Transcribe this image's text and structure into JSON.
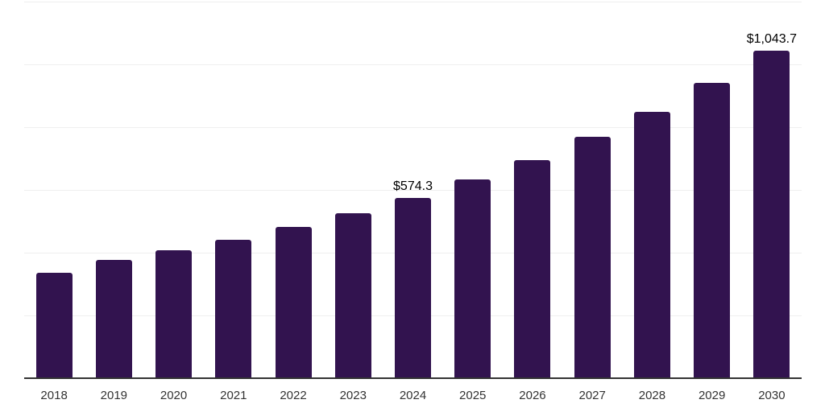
{
  "chart_data": {
    "type": "bar",
    "title": "",
    "xlabel": "",
    "ylabel": "",
    "categories": [
      "2018",
      "2019",
      "2020",
      "2021",
      "2022",
      "2023",
      "2024",
      "2025",
      "2026",
      "2027",
      "2028",
      "2029",
      "2030"
    ],
    "values": [
      335,
      378,
      407,
      441,
      483,
      526,
      574.3,
      633,
      695,
      768,
      848,
      942,
      1043.7
    ],
    "data_labels": [
      "",
      "",
      "",
      "",
      "",
      "",
      "$574.3",
      "",
      "",
      "",
      "",
      "",
      "$1,043.7"
    ],
    "ylim": [
      0,
      1200
    ],
    "grid_interval": 200,
    "grid": "horizontal-only",
    "legend_position": "none",
    "y_axis_tick_labels_visible": false,
    "colors": {
      "bar": "#32134f",
      "gridline": "#efefef",
      "axis": "#333333",
      "tick_label": "#333333",
      "data_label": "#000000",
      "background": "#ffffff"
    }
  }
}
